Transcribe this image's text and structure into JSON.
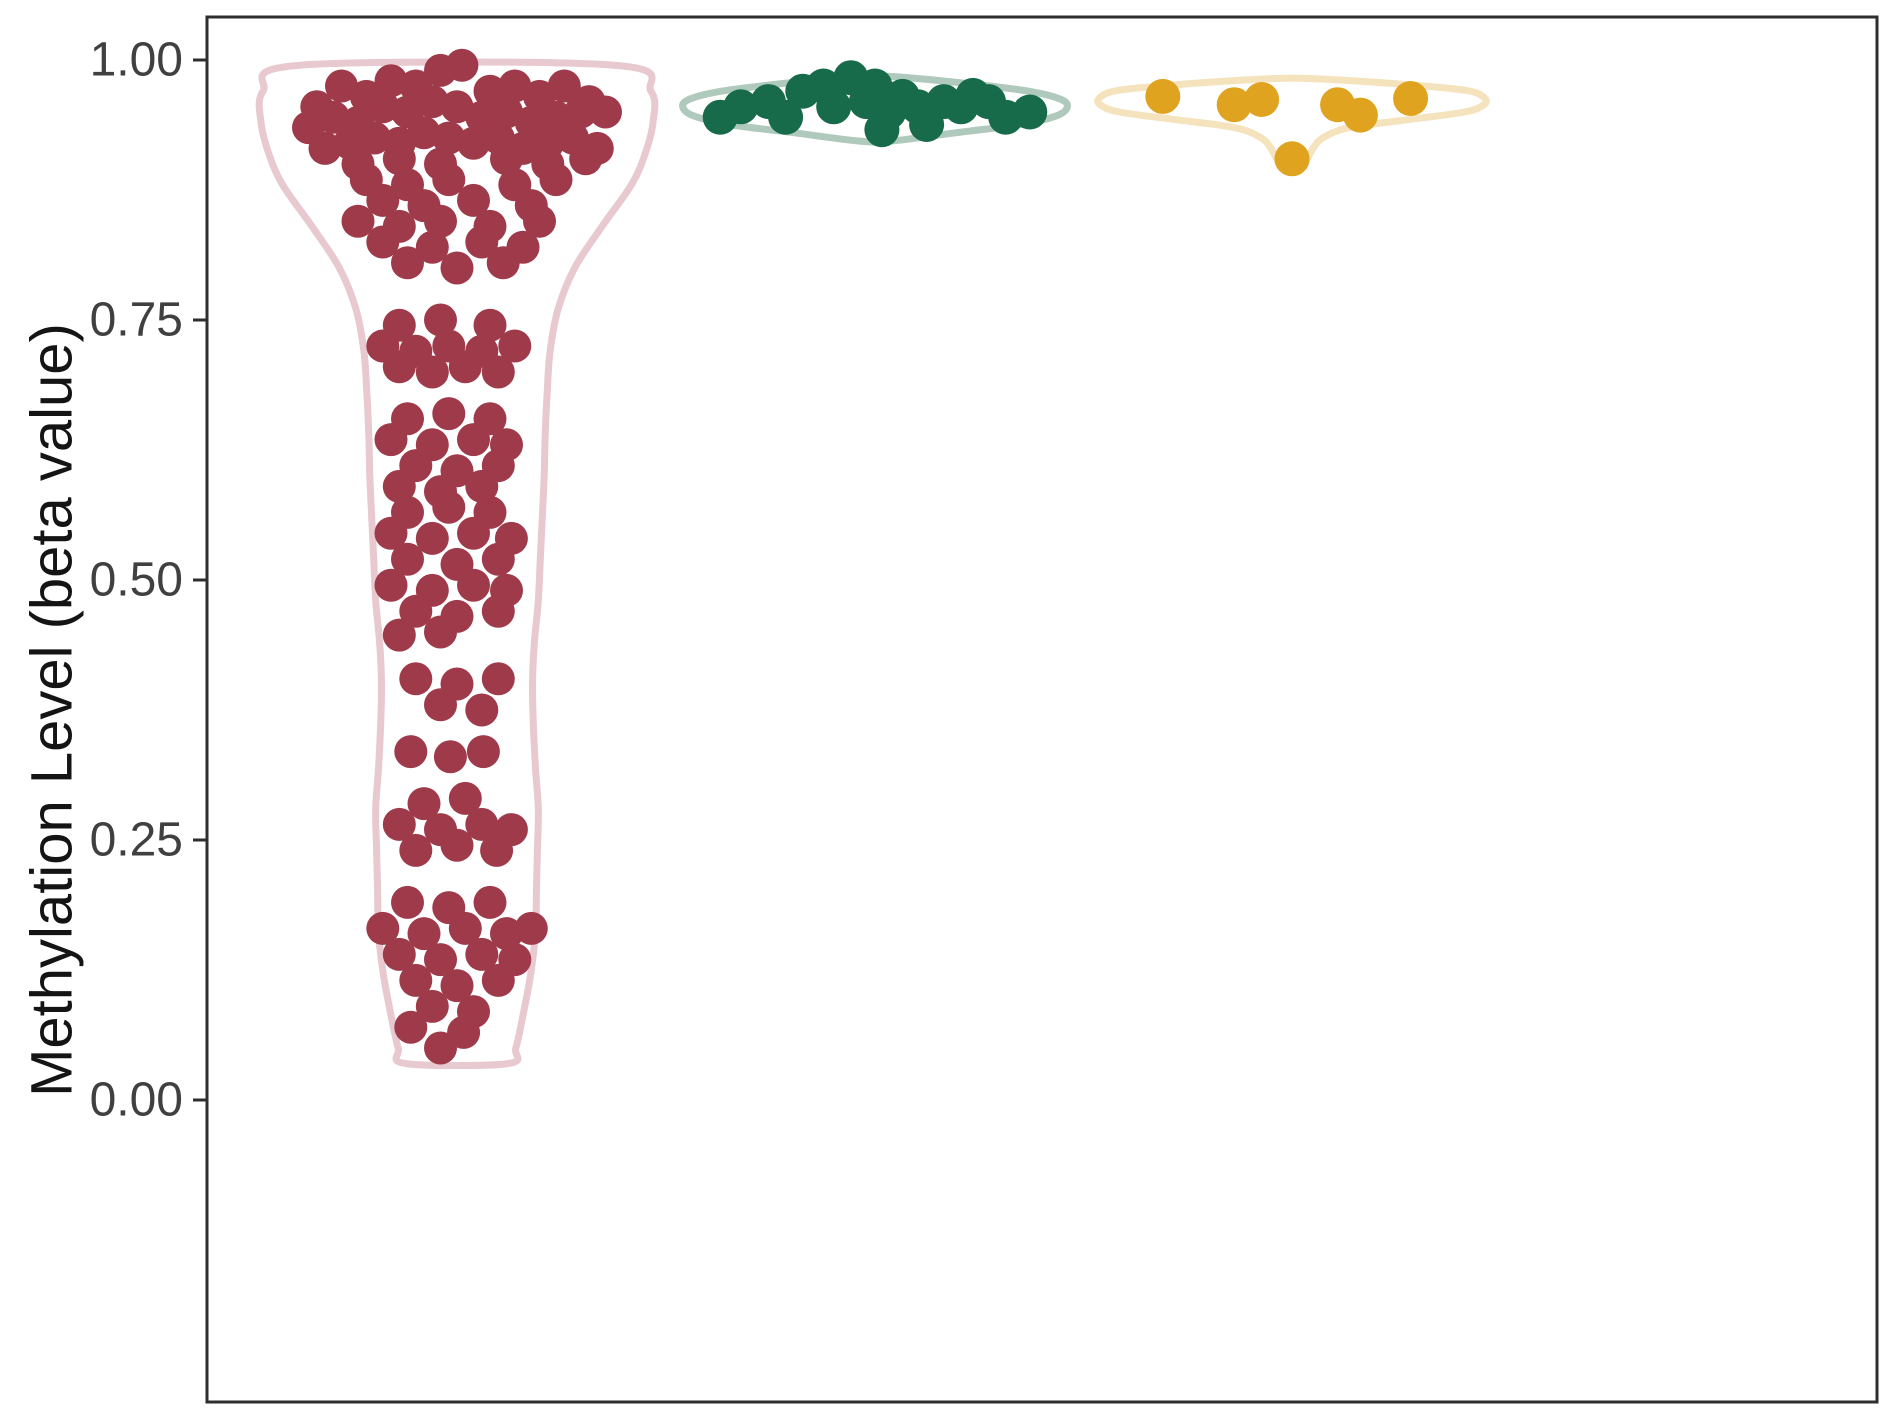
{
  "chart_data": {
    "type": "violin",
    "subtype": "violin-outline-with-jittered-points",
    "title": "",
    "xlabel": "",
    "ylabel": "Methylation Level (beta value)",
    "ylim": [
      0,
      1
    ],
    "yticks": [
      1.0,
      0.75,
      0.5,
      0.25,
      0.0
    ],
    "ytick_labels": [
      "1.00",
      "0.75",
      "0.50",
      "0.25",
      "0.00"
    ],
    "xtick_labels": [],
    "grid": false,
    "legend": "none",
    "background": "#FFFFFF",
    "axis_color": "#2E2E2E",
    "tick_label_color": "#404040",
    "axis_title_color": "#141414",
    "groups": [
      {
        "id": "group-1",
        "point_color": "#9E3A4A",
        "violin_color": "#E7C9CF",
        "n_points": 145,
        "violin_profile": [
          [
            0.035,
            0.26
          ],
          [
            0.05,
            0.3
          ],
          [
            0.08,
            0.335
          ],
          [
            0.12,
            0.375
          ],
          [
            0.16,
            0.4
          ],
          [
            0.2,
            0.405
          ],
          [
            0.24,
            0.41
          ],
          [
            0.28,
            0.415
          ],
          [
            0.32,
            0.4
          ],
          [
            0.36,
            0.39
          ],
          [
            0.4,
            0.385
          ],
          [
            0.44,
            0.395
          ],
          [
            0.48,
            0.415
          ],
          [
            0.52,
            0.425
          ],
          [
            0.56,
            0.435
          ],
          [
            0.6,
            0.445
          ],
          [
            0.64,
            0.45
          ],
          [
            0.68,
            0.46
          ],
          [
            0.72,
            0.475
          ],
          [
            0.76,
            0.515
          ],
          [
            0.8,
            0.6
          ],
          [
            0.84,
            0.74
          ],
          [
            0.88,
            0.89
          ],
          [
            0.91,
            0.96
          ],
          [
            0.94,
            1.0
          ],
          [
            0.97,
            0.99
          ],
          [
            0.995,
            0.8
          ]
        ],
        "points": [
          [
            -0.85,
            0.955
          ],
          [
            -0.7,
            0.975
          ],
          [
            -0.55,
            0.965
          ],
          [
            -0.4,
            0.98
          ],
          [
            -0.25,
            0.975
          ],
          [
            -0.1,
            0.99
          ],
          [
            0.03,
            0.995
          ],
          [
            0.2,
            0.97
          ],
          [
            0.35,
            0.975
          ],
          [
            0.5,
            0.965
          ],
          [
            0.65,
            0.975
          ],
          [
            0.8,
            0.96
          ],
          [
            0.9,
            0.95
          ],
          [
            -0.9,
            0.935
          ],
          [
            -0.75,
            0.945
          ],
          [
            -0.6,
            0.94
          ],
          [
            -0.45,
            0.955
          ],
          [
            -0.3,
            0.95
          ],
          [
            -0.15,
            0.96
          ],
          [
            0.0,
            0.955
          ],
          [
            0.15,
            0.945
          ],
          [
            0.3,
            0.95
          ],
          [
            0.45,
            0.94
          ],
          [
            0.6,
            0.945
          ],
          [
            0.75,
            0.95
          ],
          [
            -0.8,
            0.915
          ],
          [
            -0.65,
            0.92
          ],
          [
            -0.5,
            0.925
          ],
          [
            -0.35,
            0.92
          ],
          [
            -0.2,
            0.93
          ],
          [
            -0.05,
            0.925
          ],
          [
            0.1,
            0.92
          ],
          [
            0.25,
            0.925
          ],
          [
            0.4,
            0.915
          ],
          [
            0.55,
            0.92
          ],
          [
            0.7,
            0.925
          ],
          [
            0.85,
            0.915
          ],
          [
            -0.6,
            0.9
          ],
          [
            -0.35,
            0.905
          ],
          [
            -0.1,
            0.9
          ],
          [
            0.3,
            0.905
          ],
          [
            0.55,
            0.9
          ],
          [
            0.78,
            0.905
          ],
          [
            -0.55,
            0.885
          ],
          [
            -0.3,
            0.88
          ],
          [
            -0.05,
            0.885
          ],
          [
            0.35,
            0.88
          ],
          [
            0.6,
            0.885
          ],
          [
            -0.45,
            0.865
          ],
          [
            -0.2,
            0.86
          ],
          [
            0.1,
            0.865
          ],
          [
            0.45,
            0.86
          ],
          [
            -0.6,
            0.845
          ],
          [
            -0.35,
            0.84
          ],
          [
            -0.1,
            0.845
          ],
          [
            0.2,
            0.84
          ],
          [
            0.5,
            0.845
          ],
          [
            -0.45,
            0.825
          ],
          [
            -0.15,
            0.82
          ],
          [
            0.15,
            0.825
          ],
          [
            0.4,
            0.82
          ],
          [
            -0.3,
            0.805
          ],
          [
            0.0,
            0.8
          ],
          [
            0.28,
            0.805
          ],
          [
            -0.35,
            0.745
          ],
          [
            -0.1,
            0.75
          ],
          [
            0.2,
            0.745
          ],
          [
            -0.45,
            0.725
          ],
          [
            -0.25,
            0.72
          ],
          [
            -0.05,
            0.725
          ],
          [
            0.15,
            0.72
          ],
          [
            0.35,
            0.725
          ],
          [
            -0.35,
            0.705
          ],
          [
            -0.15,
            0.7
          ],
          [
            0.05,
            0.705
          ],
          [
            0.25,
            0.7
          ],
          [
            -0.3,
            0.655
          ],
          [
            -0.05,
            0.66
          ],
          [
            0.2,
            0.655
          ],
          [
            -0.4,
            0.635
          ],
          [
            -0.15,
            0.63
          ],
          [
            0.1,
            0.635
          ],
          [
            0.3,
            0.63
          ],
          [
            -0.25,
            0.61
          ],
          [
            0.0,
            0.605
          ],
          [
            0.25,
            0.61
          ],
          [
            -0.35,
            0.59
          ],
          [
            -0.1,
            0.585
          ],
          [
            0.15,
            0.59
          ],
          [
            -0.3,
            0.565
          ],
          [
            -0.05,
            0.57
          ],
          [
            0.2,
            0.565
          ],
          [
            -0.4,
            0.545
          ],
          [
            -0.15,
            0.54
          ],
          [
            0.1,
            0.545
          ],
          [
            0.33,
            0.54
          ],
          [
            -0.3,
            0.52
          ],
          [
            0.0,
            0.515
          ],
          [
            0.25,
            0.52
          ],
          [
            -0.4,
            0.495
          ],
          [
            -0.15,
            0.49
          ],
          [
            0.1,
            0.495
          ],
          [
            0.3,
            0.49
          ],
          [
            -0.25,
            0.47
          ],
          [
            0.0,
            0.465
          ],
          [
            0.25,
            0.47
          ],
          [
            -0.35,
            0.447
          ],
          [
            -0.1,
            0.45
          ],
          [
            -0.25,
            0.405
          ],
          [
            0.0,
            0.4
          ],
          [
            0.25,
            0.405
          ],
          [
            -0.1,
            0.38
          ],
          [
            0.15,
            0.375
          ],
          [
            -0.28,
            0.335
          ],
          [
            -0.04,
            0.33
          ],
          [
            0.16,
            0.335
          ],
          [
            -0.2,
            0.285
          ],
          [
            0.05,
            0.29
          ],
          [
            -0.35,
            0.265
          ],
          [
            -0.1,
            0.26
          ],
          [
            0.15,
            0.265
          ],
          [
            0.33,
            0.26
          ],
          [
            -0.25,
            0.24
          ],
          [
            0.0,
            0.245
          ],
          [
            0.24,
            0.24
          ],
          [
            -0.3,
            0.19
          ],
          [
            -0.05,
            0.185
          ],
          [
            0.2,
            0.19
          ],
          [
            -0.45,
            0.165
          ],
          [
            -0.2,
            0.16
          ],
          [
            0.05,
            0.165
          ],
          [
            0.3,
            0.16
          ],
          [
            0.45,
            0.165
          ],
          [
            -0.35,
            0.14
          ],
          [
            -0.1,
            0.135
          ],
          [
            0.15,
            0.14
          ],
          [
            0.35,
            0.135
          ],
          [
            -0.25,
            0.115
          ],
          [
            0.0,
            0.11
          ],
          [
            0.25,
            0.115
          ],
          [
            -0.15,
            0.09
          ],
          [
            0.1,
            0.085
          ],
          [
            -0.28,
            0.07
          ],
          [
            0.04,
            0.065
          ],
          [
            -0.1,
            0.05
          ]
        ]
      },
      {
        "id": "group-2",
        "point_color": "#176B4B",
        "violin_color": "#AFC9BD",
        "n_points": 21,
        "violin_profile": [
          [
            0.922,
            0.08
          ],
          [
            0.93,
            0.42
          ],
          [
            0.938,
            0.76
          ],
          [
            0.946,
            0.94
          ],
          [
            0.954,
            1.0
          ],
          [
            0.962,
            0.97
          ],
          [
            0.97,
            0.8
          ],
          [
            0.978,
            0.45
          ],
          [
            0.984,
            0.1
          ]
        ],
        "points": [
          [
            -0.9,
            0.945
          ],
          [
            -0.78,
            0.955
          ],
          [
            -0.62,
            0.96
          ],
          [
            -0.52,
            0.945
          ],
          [
            -0.42,
            0.97
          ],
          [
            -0.3,
            0.975
          ],
          [
            -0.24,
            0.955
          ],
          [
            -0.14,
            0.983
          ],
          [
            -0.05,
            0.96
          ],
          [
            0.0,
            0.975
          ],
          [
            0.08,
            0.95
          ],
          [
            0.16,
            0.965
          ],
          [
            0.25,
            0.955
          ],
          [
            0.3,
            0.938
          ],
          [
            0.4,
            0.96
          ],
          [
            0.5,
            0.955
          ],
          [
            0.57,
            0.966
          ],
          [
            0.66,
            0.96
          ],
          [
            0.76,
            0.945
          ],
          [
            0.9,
            0.95
          ],
          [
            0.04,
            0.933
          ]
        ]
      },
      {
        "id": "group-3",
        "point_color": "#DFA320",
        "violin_color": "#F4E3BC",
        "n_points": 7,
        "violin_profile": [
          [
            0.896,
            0.05
          ],
          [
            0.905,
            0.08
          ],
          [
            0.915,
            0.11
          ],
          [
            0.925,
            0.16
          ],
          [
            0.935,
            0.3
          ],
          [
            0.943,
            0.62
          ],
          [
            0.95,
            0.9
          ],
          [
            0.957,
            1.0
          ],
          [
            0.964,
            1.0
          ],
          [
            0.971,
            0.9
          ],
          [
            0.977,
            0.55
          ],
          [
            0.982,
            0.12
          ]
        ],
        "points": [
          [
            -0.85,
            0.965
          ],
          [
            -0.38,
            0.957
          ],
          [
            -0.2,
            0.962
          ],
          [
            0.0,
            0.905
          ],
          [
            0.3,
            0.957
          ],
          [
            0.45,
            0.947
          ],
          [
            0.78,
            0.963
          ]
        ]
      }
    ]
  }
}
